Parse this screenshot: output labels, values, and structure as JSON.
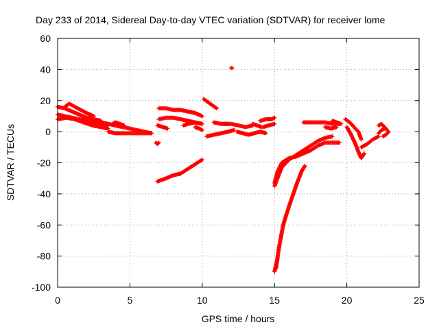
{
  "chart_data": {
    "type": "scatter",
    "title": "Day 233 of 2014, Sidereal Day-to-day VTEC variation (SDTVAR) for receiver lome",
    "xlabel": "GPS time / hours",
    "ylabel": "SDTVAR / TECUs",
    "xlim": [
      0,
      25
    ],
    "ylim": [
      -100,
      60
    ],
    "xticks": [
      0,
      5,
      10,
      15,
      20,
      25
    ],
    "yticks": [
      -100,
      -80,
      -60,
      -40,
      -20,
      0,
      20,
      40,
      60
    ],
    "grid": true,
    "marker": "+",
    "color": "#ff0000",
    "series": [
      {
        "x": [
          0.0,
          0.5,
          1.0,
          1.5,
          2.0,
          2.5,
          3.0
        ],
        "y": [
          16,
          15,
          13,
          11,
          9,
          8,
          7
        ]
      },
      {
        "x": [
          0.0,
          0.5,
          1.0,
          1.5,
          2.0,
          2.5,
          3.0,
          3.5
        ],
        "y": [
          11,
          10,
          9,
          8,
          7,
          6,
          5,
          4
        ]
      },
      {
        "x": [
          0.0,
          0.6,
          1.2,
          1.8,
          2.4,
          3.0,
          3.5
        ],
        "y": [
          8,
          9,
          8,
          6,
          4,
          3,
          2
        ]
      },
      {
        "x": [
          0.5,
          0.8,
          1.2,
          1.6,
          2.0,
          2.5
        ],
        "y": [
          16,
          18,
          16,
          14,
          12,
          10
        ]
      },
      {
        "x": [
          3.0,
          3.5,
          4.0,
          4.5,
          5.0,
          5.5,
          6.0,
          6.5
        ],
        "y": [
          6,
          5,
          4,
          3,
          2,
          1,
          0,
          -1
        ]
      },
      {
        "x": [
          3.5,
          4.0,
          4.5,
          5.0,
          5.5,
          6.0,
          6.5
        ],
        "y": [
          0,
          -1,
          -1,
          -1,
          -1,
          -1,
          -1
        ]
      },
      {
        "x": [
          3.8,
          4.0,
          4.3,
          4.6
        ],
        "y": [
          5,
          6,
          5,
          4
        ]
      },
      {
        "x": [
          6.8,
          6.9,
          7.0
        ],
        "y": [
          -7,
          -8,
          -7
        ]
      },
      {
        "x": [
          6.9,
          7.5,
          8.0,
          8.5,
          9.0,
          9.5,
          10.0
        ],
        "y": [
          -32,
          -30,
          -28,
          -27,
          -24,
          -21,
          -18
        ]
      },
      {
        "x": [
          7.0,
          7.5,
          8.0,
          8.5,
          9.0,
          9.5,
          10.0
        ],
        "y": [
          15,
          15,
          14,
          14,
          13,
          12,
          10
        ]
      },
      {
        "x": [
          7.0,
          7.5,
          8.0,
          8.5,
          9.0,
          9.5,
          10.0
        ],
        "y": [
          8,
          9,
          9,
          8,
          7,
          6,
          5
        ]
      },
      {
        "x": [
          6.9,
          7.3,
          7.6
        ],
        "y": [
          4,
          3,
          2
        ]
      },
      {
        "x": [
          8.7,
          9.0,
          9.5,
          10.0
        ],
        "y": [
          4,
          5,
          6,
          5
        ]
      },
      {
        "x": [
          9.5,
          9.8,
          10.0
        ],
        "y": [
          3,
          2,
          1
        ]
      },
      {
        "x": [
          10.1,
          10.4,
          10.7,
          11.0
        ],
        "y": [
          21,
          19,
          17,
          15
        ]
      },
      {
        "x": [
          10.3,
          10.8,
          11.3,
          11.8,
          12.2
        ],
        "y": [
          -3,
          -2,
          -1,
          0,
          1
        ]
      },
      {
        "x": [
          11.5,
          12.0,
          12.5,
          13.0,
          13.5
        ],
        "y": [
          5,
          5,
          4,
          3,
          4
        ]
      },
      {
        "x": [
          10.8,
          11.3,
          11.8
        ],
        "y": [
          6,
          5,
          5
        ]
      },
      {
        "x": [
          12.0
        ],
        "y": [
          41
        ]
      },
      {
        "x": [
          12.4,
          12.8,
          13.2,
          13.6,
          14.0,
          14.4
        ],
        "y": [
          0,
          -1,
          -2,
          -1,
          0,
          -1
        ]
      },
      {
        "x": [
          13.5,
          13.8,
          14.1
        ],
        "y": [
          5,
          4,
          3
        ]
      },
      {
        "x": [
          14.0,
          14.4,
          14.8,
          15.0
        ],
        "y": [
          7,
          8,
          8,
          9
        ]
      },
      {
        "x": [
          14.2,
          14.6,
          15.0
        ],
        "y": [
          3,
          4,
          5
        ]
      },
      {
        "x": [
          15.0,
          15.2,
          15.5,
          16.0,
          16.5,
          17.0,
          17.5,
          18.0,
          18.5,
          19.0,
          19.5
        ],
        "y": [
          -33,
          -26,
          -20,
          -17,
          -16,
          -14,
          -12,
          -9,
          -7,
          -7,
          -7
        ]
      },
      {
        "x": [
          15.0,
          15.2,
          15.5,
          16.0,
          16.5,
          17.0,
          17.5,
          18.0,
          18.5,
          19.0
        ],
        "y": [
          -35,
          -30,
          -23,
          -18,
          -15,
          -12,
          -9,
          -6,
          -4,
          -3
        ]
      },
      {
        "x": [
          15.1,
          15.3,
          15.6,
          16.0,
          16.3,
          16.6,
          16.9,
          17.1
        ],
        "y": [
          -88,
          -75,
          -60,
          -48,
          -40,
          -32,
          -25,
          -22
        ]
      },
      {
        "x": [
          15.0,
          15.1,
          15.2
        ],
        "y": [
          -90,
          -86,
          -82
        ]
      },
      {
        "x": [
          17.0,
          17.5,
          18.0,
          18.5,
          19.0,
          19.5
        ],
        "y": [
          6,
          6,
          6,
          6,
          5,
          5
        ]
      },
      {
        "x": [
          18.5,
          18.9,
          19.3
        ],
        "y": [
          3,
          2,
          3
        ]
      },
      {
        "x": [
          19.0,
          19.3,
          19.6
        ],
        "y": [
          7,
          6,
          5
        ]
      },
      {
        "x": [
          19.9,
          20.2,
          20.5,
          20.8,
          21.0
        ],
        "y": [
          8,
          6,
          3,
          0,
          -5
        ]
      },
      {
        "x": [
          20.0,
          20.3,
          20.6,
          20.8,
          21.0,
          21.2
        ],
        "y": [
          3,
          -2,
          -8,
          -13,
          -17,
          -14
        ]
      },
      {
        "x": [
          21.0,
          21.4,
          21.8,
          22.2
        ],
        "y": [
          -10,
          -8,
          -5,
          -3
        ]
      },
      {
        "x": [
          22.2,
          22.4,
          22.6,
          22.8
        ],
        "y": [
          4,
          5,
          3,
          1
        ]
      },
      {
        "x": [
          22.5,
          22.7,
          22.9
        ],
        "y": [
          -3,
          -2,
          0
        ]
      },
      {
        "x": [
          22.2,
          22.4,
          22.6
        ],
        "y": [
          -1,
          1,
          2
        ]
      }
    ]
  }
}
